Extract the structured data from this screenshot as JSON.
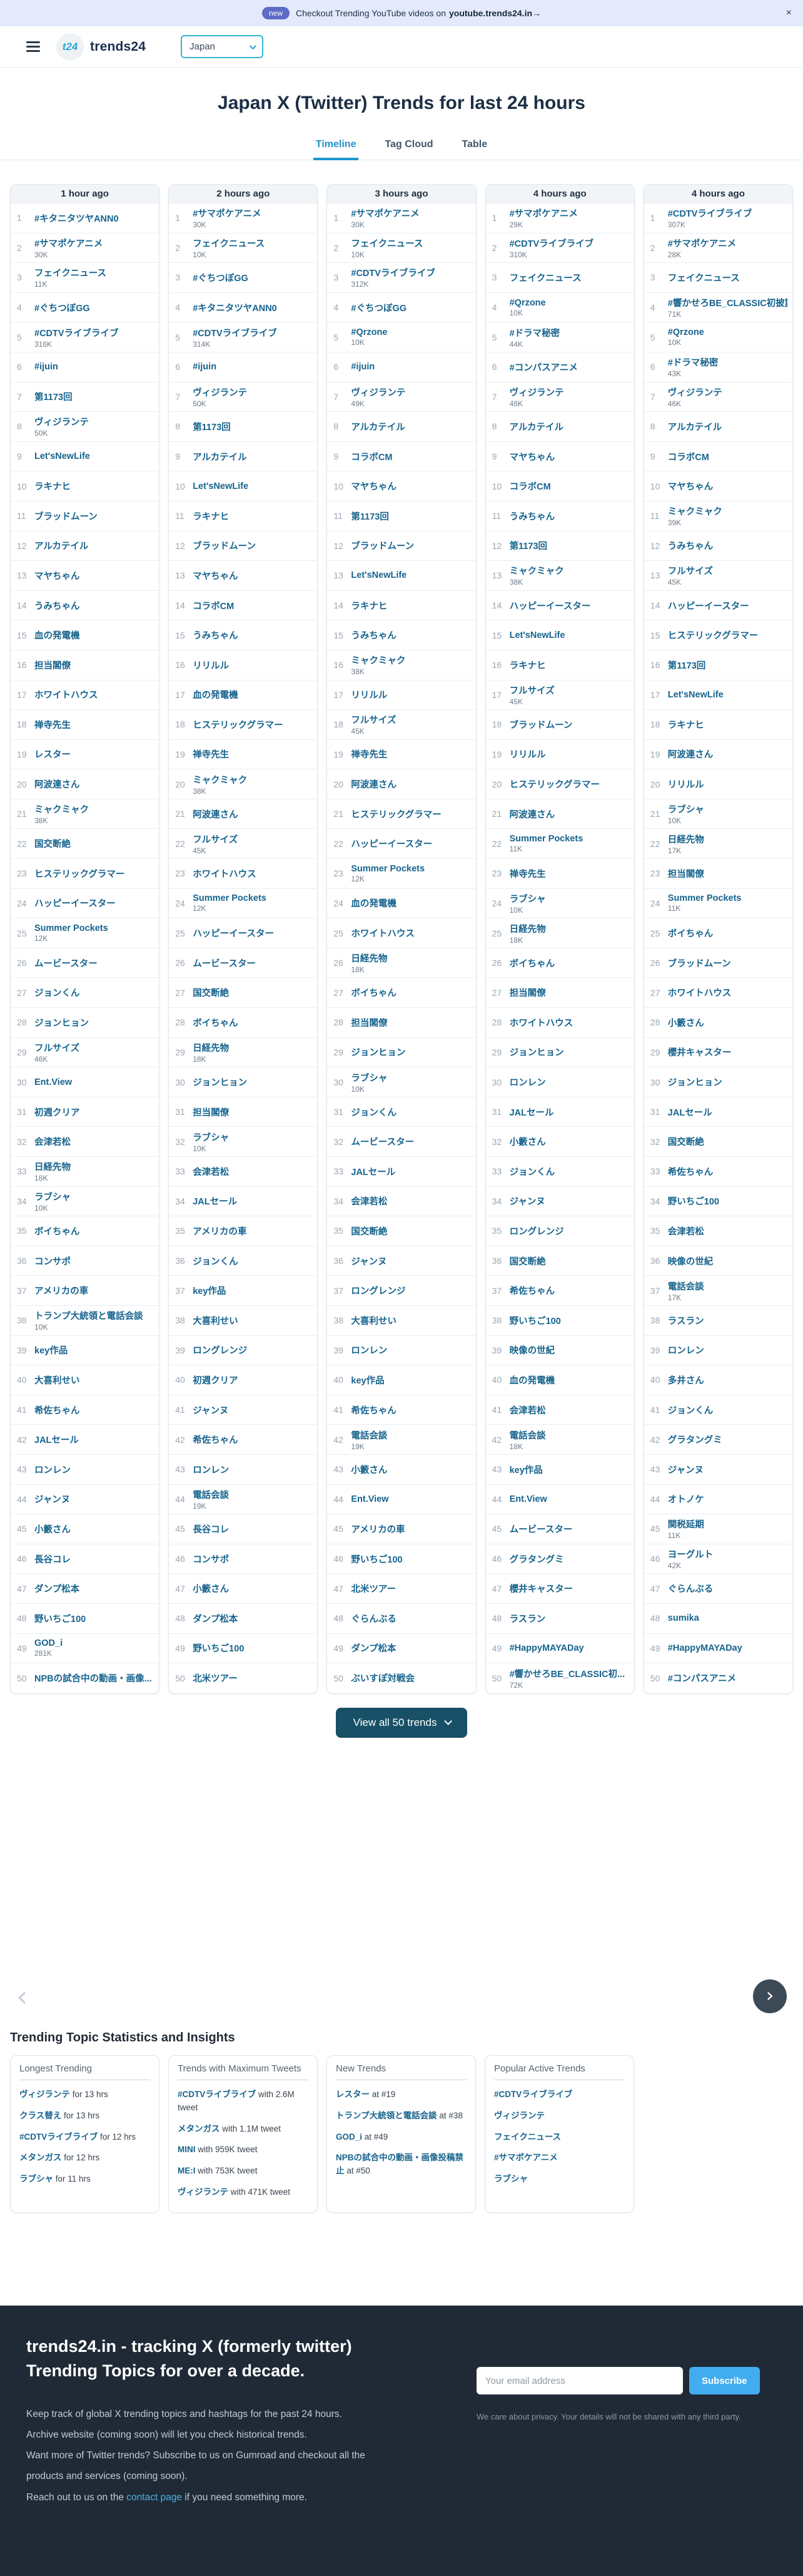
{
  "banner": {
    "badge": "new",
    "message": "Checkout Trending YouTube videos on",
    "link": "youtube.trends24.in→",
    "close": "×"
  },
  "header": {
    "logo": "t24",
    "brand": "trends24",
    "country": "Japan"
  },
  "page": {
    "title": "Japan X (Twitter) Trends for last 24 hours"
  },
  "tabs": {
    "timeline": "Timeline",
    "tag_cloud": "Tag Cloud",
    "table": "Table"
  },
  "view_all_label": "View all 50 trends",
  "columns": [
    {
      "time": "1 hour ago",
      "trends": [
        {
          "name": "#キタニタツヤANN0"
        },
        {
          "name": "#サマポケアニメ",
          "count": "30K"
        },
        {
          "name": "フェイクニュース",
          "count": "11K"
        },
        {
          "name": "#ぐちつぼGG"
        },
        {
          "name": "#CDTVライブライブ",
          "count": "316K"
        },
        {
          "name": "#ijuin"
        },
        {
          "name": "第1173回"
        },
        {
          "name": "ヴィジランテ",
          "count": "50K"
        },
        {
          "name": "Let'sNewLife"
        },
        {
          "name": "ラキナヒ"
        },
        {
          "name": "ブラッドムーン"
        },
        {
          "name": "アルカテイル"
        },
        {
          "name": "マヤちゃん"
        },
        {
          "name": "うみちゃん"
        },
        {
          "name": "血の発電機"
        },
        {
          "name": "担当閣僚"
        },
        {
          "name": "ホワイトハウス"
        },
        {
          "name": "禅寺先生"
        },
        {
          "name": "レスター"
        },
        {
          "name": "阿波連さん"
        },
        {
          "name": "ミャクミャク",
          "count": "38K"
        },
        {
          "name": "国交断絶"
        },
        {
          "name": "ヒステリックグラマー"
        },
        {
          "name": "ハッピーイースター"
        },
        {
          "name": "Summer Pockets",
          "count": "12K"
        },
        {
          "name": "ムービースター"
        },
        {
          "name": "ジョンくん"
        },
        {
          "name": "ジョンヒョン"
        },
        {
          "name": "フルサイズ",
          "count": "46K"
        },
        {
          "name": "Ent.View"
        },
        {
          "name": "初週クリア"
        },
        {
          "name": "会津若松"
        },
        {
          "name": "日経先物",
          "count": "18K"
        },
        {
          "name": "ラブシャ",
          "count": "10K"
        },
        {
          "name": "ボイちゃん"
        },
        {
          "name": "コンサポ"
        },
        {
          "name": "アメリカの車"
        },
        {
          "name": "トランプ大統領と電話会談",
          "count": "10K"
        },
        {
          "name": "key作品"
        },
        {
          "name": "大喜利せい"
        },
        {
          "name": "希佐ちゃん"
        },
        {
          "name": "JALセール"
        },
        {
          "name": "ロンレン"
        },
        {
          "name": "ジャンヌ"
        },
        {
          "name": "小籔さん"
        },
        {
          "name": "長谷コレ"
        },
        {
          "name": "ダンプ松本"
        },
        {
          "name": "野いちご100"
        },
        {
          "name": "GOD_i",
          "count": "281K"
        },
        {
          "name": "NPBの試合中の動画・画像..."
        }
      ]
    },
    {
      "time": "2 hours ago",
      "trends": [
        {
          "name": "#サマポケアニメ",
          "count": "30K"
        },
        {
          "name": "フェイクニュース",
          "count": "10K"
        },
        {
          "name": "#ぐちつぼGG"
        },
        {
          "name": "#キタニタツヤANN0"
        },
        {
          "name": "#CDTVライブライブ",
          "count": "314K"
        },
        {
          "name": "#ijuin"
        },
        {
          "name": "ヴィジランテ",
          "count": "50K"
        },
        {
          "name": "第1173回"
        },
        {
          "name": "アルカテイル"
        },
        {
          "name": "Let'sNewLife"
        },
        {
          "name": "ラキナヒ"
        },
        {
          "name": "ブラッドムーン"
        },
        {
          "name": "マヤちゃん"
        },
        {
          "name": "コラボCM"
        },
        {
          "name": "うみちゃん"
        },
        {
          "name": "リリルル"
        },
        {
          "name": "血の発電機"
        },
        {
          "name": "ヒステリックグラマー"
        },
        {
          "name": "禅寺先生"
        },
        {
          "name": "ミャクミャク",
          "count": "38K"
        },
        {
          "name": "阿波連さん"
        },
        {
          "name": "フルサイズ",
          "count": "45K"
        },
        {
          "name": "ホワイトハウス"
        },
        {
          "name": "Summer Pockets",
          "count": "12K"
        },
        {
          "name": "ハッピーイースター"
        },
        {
          "name": "ムービースター"
        },
        {
          "name": "国交断絶"
        },
        {
          "name": "ボイちゃん"
        },
        {
          "name": "日経先物",
          "count": "18K"
        },
        {
          "name": "ジョンヒョン"
        },
        {
          "name": "担当閣僚"
        },
        {
          "name": "ラブシャ",
          "count": "10K"
        },
        {
          "name": "会津若松"
        },
        {
          "name": "JALセール"
        },
        {
          "name": "アメリカの車"
        },
        {
          "name": "ジョンくん"
        },
        {
          "name": "key作品"
        },
        {
          "name": "大喜利せい"
        },
        {
          "name": "ロングレンジ"
        },
        {
          "name": "初週クリア"
        },
        {
          "name": "ジャンヌ"
        },
        {
          "name": "希佐ちゃん"
        },
        {
          "name": "ロンレン"
        },
        {
          "name": "電話会談",
          "count": "19K"
        },
        {
          "name": "長谷コレ"
        },
        {
          "name": "コンサポ"
        },
        {
          "name": "小籔さん"
        },
        {
          "name": "ダンプ松本"
        },
        {
          "name": "野いちご100"
        },
        {
          "name": "北米ツアー"
        }
      ]
    },
    {
      "time": "3 hours ago",
      "trends": [
        {
          "name": "#サマポケアニメ",
          "count": "30K"
        },
        {
          "name": "フェイクニュース",
          "count": "10K"
        },
        {
          "name": "#CDTVライブライブ",
          "count": "312K"
        },
        {
          "name": "#ぐちつぼGG"
        },
        {
          "name": "#Qrzone",
          "count": "10K"
        },
        {
          "name": "#ijuin"
        },
        {
          "name": "ヴィジランテ",
          "count": "49K"
        },
        {
          "name": "アルカテイル"
        },
        {
          "name": "コラボCM"
        },
        {
          "name": "マヤちゃん"
        },
        {
          "name": "第1173回"
        },
        {
          "name": "ブラッドムーン"
        },
        {
          "name": "Let'sNewLife"
        },
        {
          "name": "ラキナヒ"
        },
        {
          "name": "うみちゃん"
        },
        {
          "name": "ミャクミャク",
          "count": "38K"
        },
        {
          "name": "リリルル"
        },
        {
          "name": "フルサイズ",
          "count": "45K"
        },
        {
          "name": "禅寺先生"
        },
        {
          "name": "阿波連さん"
        },
        {
          "name": "ヒステリックグラマー"
        },
        {
          "name": "ハッピーイースター"
        },
        {
          "name": "Summer Pockets",
          "count": "12K"
        },
        {
          "name": "血の発電機"
        },
        {
          "name": "ホワイトハウス"
        },
        {
          "name": "日経先物",
          "count": "18K"
        },
        {
          "name": "ボイちゃん"
        },
        {
          "name": "担当閣僚"
        },
        {
          "name": "ジョンヒョン"
        },
        {
          "name": "ラブシャ",
          "count": "10K"
        },
        {
          "name": "ジョンくん"
        },
        {
          "name": "ムービースター"
        },
        {
          "name": "JALセール"
        },
        {
          "name": "会津若松"
        },
        {
          "name": "国交断絶"
        },
        {
          "name": "ジャンヌ"
        },
        {
          "name": "ロングレンジ"
        },
        {
          "name": "大喜利せい"
        },
        {
          "name": "ロンレン"
        },
        {
          "name": "key作品"
        },
        {
          "name": "希佐ちゃん"
        },
        {
          "name": "電話会談",
          "count": "19K"
        },
        {
          "name": "小籔さん"
        },
        {
          "name": "Ent.View"
        },
        {
          "name": "アメリカの車"
        },
        {
          "name": "野いちご100"
        },
        {
          "name": "北米ツアー"
        },
        {
          "name": "ぐらんぶる"
        },
        {
          "name": "ダンプ松本"
        },
        {
          "name": "ぶいすぽ対戦会"
        }
      ]
    },
    {
      "time": "4 hours ago",
      "trends": [
        {
          "name": "#サマポケアニメ",
          "count": "29K"
        },
        {
          "name": "#CDTVライブライブ",
          "count": "310K"
        },
        {
          "name": "フェイクニュース"
        },
        {
          "name": "#Qrzone",
          "count": "10K"
        },
        {
          "name": "#ドラマ秘密",
          "count": "44K"
        },
        {
          "name": "#コンパスアニメ"
        },
        {
          "name": "ヴィジランテ",
          "count": "48K"
        },
        {
          "name": "アルカテイル"
        },
        {
          "name": "マヤちゃん"
        },
        {
          "name": "コラボCM"
        },
        {
          "name": "うみちゃん"
        },
        {
          "name": "第1173回"
        },
        {
          "name": "ミャクミャク",
          "count": "38K"
        },
        {
          "name": "ハッピーイースター"
        },
        {
          "name": "Let'sNewLife"
        },
        {
          "name": "ラキナヒ"
        },
        {
          "name": "フルサイズ",
          "count": "45K"
        },
        {
          "name": "ブラッドムーン"
        },
        {
          "name": "リリルル"
        },
        {
          "name": "ヒステリックグラマー"
        },
        {
          "name": "阿波連さん"
        },
        {
          "name": "Summer Pockets",
          "count": "11K"
        },
        {
          "name": "禅寺先生"
        },
        {
          "name": "ラブシャ",
          "count": "10K"
        },
        {
          "name": "日経先物",
          "count": "18K"
        },
        {
          "name": "ボイちゃん"
        },
        {
          "name": "担当閣僚"
        },
        {
          "name": "ホワイトハウス"
        },
        {
          "name": "ジョンヒョン"
        },
        {
          "name": "ロンレン"
        },
        {
          "name": "JALセール"
        },
        {
          "name": "小籔さん"
        },
        {
          "name": "ジョンくん"
        },
        {
          "name": "ジャンヌ"
        },
        {
          "name": "ロングレンジ"
        },
        {
          "name": "国交断絶"
        },
        {
          "name": "希佐ちゃん"
        },
        {
          "name": "野いちご100"
        },
        {
          "name": "映像の世紀"
        },
        {
          "name": "血の発電機"
        },
        {
          "name": "会津若松"
        },
        {
          "name": "電話会談",
          "count": "18K"
        },
        {
          "name": "key作品"
        },
        {
          "name": "Ent.View"
        },
        {
          "name": "ムービースター"
        },
        {
          "name": "グラタングミ"
        },
        {
          "name": "櫻井キャスター"
        },
        {
          "name": "ラスラン"
        },
        {
          "name": "#HappyMAYADay"
        },
        {
          "name": "#響かせろBE_CLASSIC初...",
          "count": "72K"
        }
      ]
    },
    {
      "time": "4 hours ago",
      "trends": [
        {
          "name": "#CDTVライブライブ",
          "count": "307K"
        },
        {
          "name": "#サマポケアニメ",
          "count": "28K"
        },
        {
          "name": "フェイクニュース"
        },
        {
          "name": "#響かせろBE_CLASSIC初披露",
          "count": "71K"
        },
        {
          "name": "#Qrzone",
          "count": "10K"
        },
        {
          "name": "#ドラマ秘密",
          "count": "43K"
        },
        {
          "name": "ヴィジランテ",
          "count": "46K"
        },
        {
          "name": "アルカテイル"
        },
        {
          "name": "コラボCM"
        },
        {
          "name": "マヤちゃん"
        },
        {
          "name": "ミャクミャク",
          "count": "39K"
        },
        {
          "name": "うみちゃん"
        },
        {
          "name": "フルサイズ",
          "count": "45K"
        },
        {
          "name": "ハッピーイースター"
        },
        {
          "name": "ヒステリックグラマー"
        },
        {
          "name": "第1173回"
        },
        {
          "name": "Let'sNewLife"
        },
        {
          "name": "ラキナヒ"
        },
        {
          "name": "阿波連さん"
        },
        {
          "name": "リリルル"
        },
        {
          "name": "ラブシャ",
          "count": "10K"
        },
        {
          "name": "日経先物",
          "count": "17K"
        },
        {
          "name": "担当閣僚"
        },
        {
          "name": "Summer Pockets",
          "count": "11K"
        },
        {
          "name": "ボイちゃん"
        },
        {
          "name": "ブラッドムーン"
        },
        {
          "name": "ホワイトハウス"
        },
        {
          "name": "小籔さん"
        },
        {
          "name": "櫻井キャスター"
        },
        {
          "name": "ジョンヒョン"
        },
        {
          "name": "JALセール"
        },
        {
          "name": "国交断絶"
        },
        {
          "name": "希佐ちゃん"
        },
        {
          "name": "野いちご100"
        },
        {
          "name": "会津若松"
        },
        {
          "name": "映像の世紀"
        },
        {
          "name": "電話会談",
          "count": "17K"
        },
        {
          "name": "ラスラン"
        },
        {
          "name": "ロンレン"
        },
        {
          "name": "多井さん"
        },
        {
          "name": "ジョンくん"
        },
        {
          "name": "グラタングミ"
        },
        {
          "name": "ジャンヌ"
        },
        {
          "name": "オトノケ"
        },
        {
          "name": "関税延期",
          "count": "11K"
        },
        {
          "name": "ヨーグルト",
          "count": "42K"
        },
        {
          "name": "ぐらんぶる"
        },
        {
          "name": "sumika"
        },
        {
          "name": "#HappyMAYADay"
        },
        {
          "name": "#コンパスアニメ"
        }
      ]
    }
  ],
  "stats": {
    "heading": "Trending Topic Statistics and Insights",
    "cards": [
      {
        "title": "Longest Trending",
        "items": [
          {
            "link": "ヴィジランテ",
            "text": "for 13 hrs"
          },
          {
            "link": "クラス替え",
            "text": "for 13 hrs"
          },
          {
            "link": "#CDTVライブライブ",
            "text": "for 12 hrs"
          },
          {
            "link": "メタンガス",
            "text": "for 12 hrs"
          },
          {
            "link": "ラブシャ",
            "text": "for 11 hrs"
          }
        ]
      },
      {
        "title": "Trends with Maximum Tweets",
        "items": [
          {
            "link": "#CDTVライブライブ",
            "text": "with 2.6M tweet"
          },
          {
            "link": "メタンガス",
            "text": "with 1.1M tweet"
          },
          {
            "link": "MINI",
            "text": "with 959K tweet"
          },
          {
            "link": "ME:I",
            "text": "with 753K tweet"
          },
          {
            "link": "ヴィジランテ",
            "text": "with 471K tweet"
          }
        ]
      },
      {
        "title": "New Trends",
        "items": [
          {
            "link": "レスター",
            "text": "at #19"
          },
          {
            "link": "トランプ大統領と電話会談",
            "text": "at #38"
          },
          {
            "link": "GOD_i",
            "text": "at #49"
          },
          {
            "link": "NPBの試合中の動画・画像投稿禁止",
            "text": "at #50"
          }
        ]
      },
      {
        "title": "Popular Active Trends",
        "items": [
          {
            "link": "#CDTVライブライブ",
            "text": ""
          },
          {
            "link": "ヴィジランテ",
            "text": ""
          },
          {
            "link": "フェイクニュース",
            "text": ""
          },
          {
            "link": "#サマポケアニメ",
            "text": ""
          },
          {
            "link": "ラブシャ",
            "text": ""
          }
        ]
      }
    ]
  },
  "footer": {
    "heading": "trends24.in - tracking X (formerly twitter) Trending Topics for over a decade.",
    "lines": [
      "Keep track of global X trending topics and hashtags for the past 24 hours.",
      "Archive website (coming soon) will let you check historical trends.",
      "Want more of Twitter trends? Subscribe to us on Gumroad and checkout all the products and services (coming soon)."
    ],
    "contact": {
      "before": "Reach out to us on the ",
      "link": "contact page",
      "after": " if you need something more."
    },
    "form": {
      "placeholder": "Your email address",
      "button": "Subscribe"
    },
    "privacy": "We care about privacy. Your details will not be shared with any third party."
  }
}
